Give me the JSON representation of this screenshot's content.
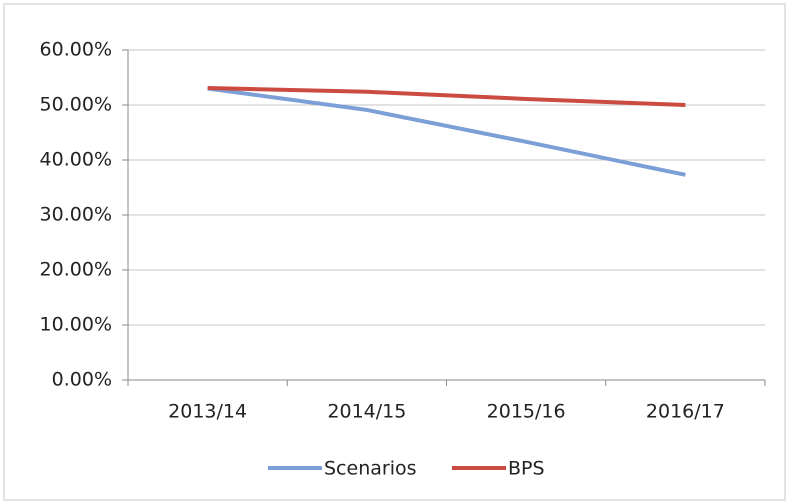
{
  "chart_data": {
    "type": "line",
    "categories": [
      "2013/14",
      "2014/15",
      "2015/16",
      "2016/17"
    ],
    "series": [
      {
        "name": "Scenarios",
        "color": "#7b9fd6",
        "values": [
          53,
          49.1,
          43.3,
          37.3
        ]
      },
      {
        "name": "BPS",
        "color": "#cc4b40",
        "values": [
          53.1,
          52.4,
          51.1,
          50
        ]
      }
    ],
    "ylim": [
      0,
      60
    ],
    "yticks": [
      {
        "value": 0,
        "label": "0.00%"
      },
      {
        "value": 10,
        "label": "10.00%"
      },
      {
        "value": 20,
        "label": "20.00%"
      },
      {
        "value": 30,
        "label": "30.00%"
      },
      {
        "value": 40,
        "label": "40.00%"
      },
      {
        "value": 50,
        "label": "50.00%"
      },
      {
        "value": 60,
        "label": "60.00%"
      }
    ],
    "grid": true,
    "legend": "bottom"
  }
}
